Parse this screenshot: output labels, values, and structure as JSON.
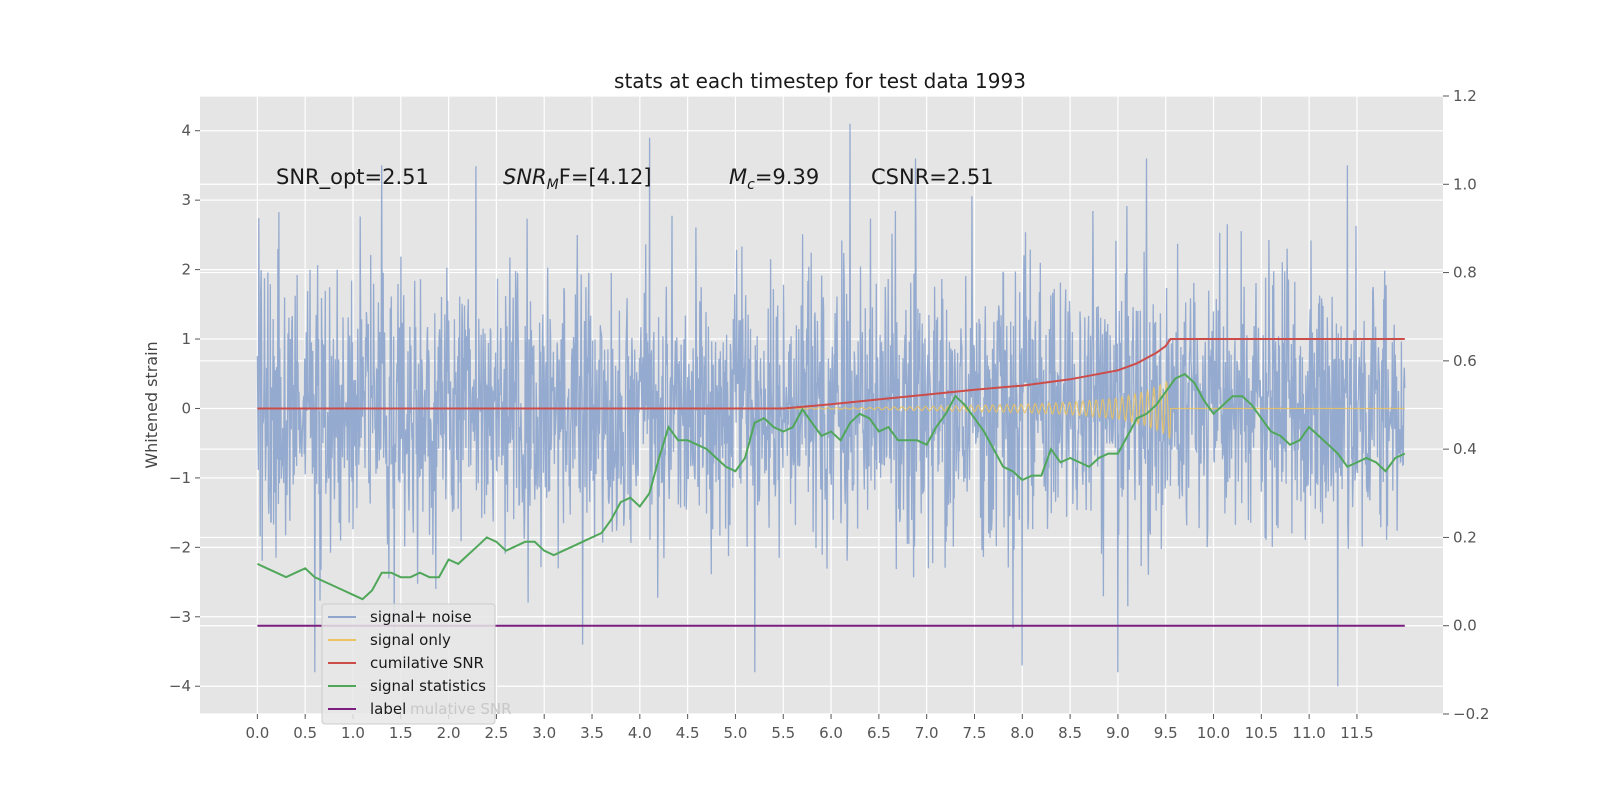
{
  "chart_data": {
    "type": "line",
    "title": "stats at each timestep for test data 1993",
    "ylabel": "Whitened strain",
    "xlim": [
      -0.6,
      12.4
    ],
    "ylim": [
      -4.4,
      4.5
    ],
    "y2lim": [
      -0.2,
      1.2
    ],
    "xticks": [
      "0.0",
      "0.5",
      "1.0",
      "1.5",
      "2.0",
      "2.5",
      "3.0",
      "3.5",
      "4.0",
      "4.5",
      "5.0",
      "5.5",
      "6.0",
      "6.5",
      "7.0",
      "7.5",
      "8.0",
      "8.5",
      "9.0",
      "9.5",
      "10.0",
      "10.5",
      "11.0",
      "11.5"
    ],
    "yticks": [
      "4",
      "3",
      "2",
      "1",
      "0",
      "−1",
      "−2",
      "−3",
      "−4"
    ],
    "y2ticks": [
      "1.2",
      "1.0",
      "0.8",
      "0.6",
      "0.4",
      "0.2",
      "0.0",
      "−0.2"
    ],
    "grid": true,
    "legend_position": "lower-left",
    "annotations": [
      {
        "id": "snr_opt",
        "text": "SNR_opt=2.51"
      },
      {
        "id": "snr_mf",
        "main": "SNR",
        "sub": "M",
        "rest": "F=[4.12]"
      },
      {
        "id": "mc",
        "main": "M",
        "sub": "c",
        "rest": "=9.39"
      },
      {
        "id": "csnr",
        "text": "CSNR=2.51"
      }
    ],
    "legend_overlap_text": "mulative SNR",
    "series": [
      {
        "name": "signal+ noise",
        "color": "#8fa7cd",
        "axis": "left",
        "note": "dense noise trace, approx. Gaussian, bulk within ±2, extremes about +4.1 / −4.0",
        "x_range": [
          0.0,
          12.0
        ],
        "highlight": [
          {
            "x": 1.3,
            "y": 3.5
          },
          {
            "x": 4.1,
            "y": 3.9
          },
          {
            "x": 6.2,
            "y": 4.1
          },
          {
            "x": 9.3,
            "y": 3.6
          },
          {
            "x": 11.4,
            "y": 3.5
          },
          {
            "x": 11.3,
            "y": -4.0
          },
          {
            "x": 9.0,
            "y": -3.8
          },
          {
            "x": 8.0,
            "y": -3.7
          },
          {
            "x": 5.2,
            "y": -3.8
          },
          {
            "x": 0.6,
            "y": -3.8
          },
          {
            "x": 3.4,
            "y": -3.4
          },
          {
            "x": 6.0,
            "y": 0.9
          },
          {
            "x": 6.0,
            "y": -1.1
          }
        ]
      },
      {
        "name": "signal only",
        "color": "#ecc35f",
        "axis": "left",
        "note": "chirp, ~0 until about 6.3, growing to ±0.45 at 9.55, then 0",
        "x": [
          0.0,
          6.2,
          7.0,
          8.0,
          8.5,
          9.0,
          9.3,
          9.5,
          9.55,
          12.0
        ],
        "envelope": [
          0.0,
          0.01,
          0.03,
          0.06,
          0.09,
          0.15,
          0.25,
          0.38,
          0.45,
          0.0
        ]
      },
      {
        "name": "cumilative SNR",
        "color": "#cc4c4a",
        "axis": "left",
        "x": [
          0.0,
          5.5,
          6.0,
          6.5,
          7.0,
          7.5,
          8.0,
          8.5,
          9.0,
          9.2,
          9.4,
          9.5,
          9.55,
          12.0
        ],
        "y": [
          0.0,
          0.0,
          0.06,
          0.13,
          0.2,
          0.27,
          0.33,
          0.42,
          0.55,
          0.65,
          0.8,
          0.9,
          1.0,
          1.0
        ]
      },
      {
        "name": "signal statistics",
        "color": "#50a75a",
        "axis": "right",
        "x": [
          0.0,
          0.1,
          0.2,
          0.3,
          0.4,
          0.5,
          0.6,
          0.7,
          0.8,
          0.9,
          1.0,
          1.1,
          1.2,
          1.3,
          1.4,
          1.5,
          1.6,
          1.7,
          1.8,
          1.9,
          2.0,
          2.1,
          2.2,
          2.3,
          2.4,
          2.5,
          2.6,
          2.7,
          2.8,
          2.9,
          3.0,
          3.1,
          3.2,
          3.3,
          3.4,
          3.5,
          3.6,
          3.7,
          3.8,
          3.9,
          4.0,
          4.1,
          4.2,
          4.3,
          4.4,
          4.5,
          4.6,
          4.7,
          4.8,
          4.9,
          5.0,
          5.1,
          5.2,
          5.3,
          5.4,
          5.5,
          5.6,
          5.7,
          5.8,
          5.9,
          6.0,
          6.1,
          6.2,
          6.3,
          6.4,
          6.5,
          6.6,
          6.7,
          6.8,
          6.9,
          7.0,
          7.1,
          7.2,
          7.3,
          7.4,
          7.5,
          7.6,
          7.7,
          7.8,
          7.9,
          8.0,
          8.1,
          8.2,
          8.3,
          8.4,
          8.5,
          8.6,
          8.7,
          8.8,
          8.9,
          9.0,
          9.1,
          9.2,
          9.3,
          9.4,
          9.5,
          9.6,
          9.7,
          9.8,
          9.9,
          10.0,
          10.1,
          10.2,
          10.3,
          10.4,
          10.5,
          10.6,
          10.7,
          10.8,
          10.9,
          11.0,
          11.1,
          11.2,
          11.3,
          11.4,
          11.5,
          11.6,
          11.7,
          11.8,
          11.9,
          12.0
        ],
        "y": [
          0.14,
          0.13,
          0.12,
          0.11,
          0.12,
          0.13,
          0.11,
          0.1,
          0.09,
          0.08,
          0.07,
          0.06,
          0.08,
          0.12,
          0.12,
          0.11,
          0.11,
          0.12,
          0.11,
          0.11,
          0.15,
          0.14,
          0.16,
          0.18,
          0.2,
          0.19,
          0.17,
          0.18,
          0.19,
          0.19,
          0.17,
          0.16,
          0.17,
          0.18,
          0.19,
          0.2,
          0.21,
          0.24,
          0.28,
          0.29,
          0.27,
          0.3,
          0.38,
          0.45,
          0.42,
          0.42,
          0.41,
          0.4,
          0.38,
          0.36,
          0.35,
          0.38,
          0.46,
          0.47,
          0.45,
          0.44,
          0.45,
          0.49,
          0.46,
          0.43,
          0.44,
          0.42,
          0.46,
          0.48,
          0.47,
          0.44,
          0.45,
          0.42,
          0.42,
          0.42,
          0.41,
          0.45,
          0.48,
          0.52,
          0.5,
          0.47,
          0.44,
          0.4,
          0.36,
          0.35,
          0.33,
          0.34,
          0.34,
          0.4,
          0.37,
          0.38,
          0.37,
          0.36,
          0.38,
          0.39,
          0.39,
          0.43,
          0.47,
          0.48,
          0.5,
          0.53,
          0.56,
          0.57,
          0.55,
          0.51,
          0.48,
          0.5,
          0.52,
          0.52,
          0.5,
          0.47,
          0.44,
          0.43,
          0.41,
          0.42,
          0.45,
          0.43,
          0.41,
          0.39,
          0.36,
          0.37,
          0.38,
          0.37,
          0.35,
          0.38,
          0.39
        ],
        "y_left_note": "plotted against right axis (0.0 to 1.2)"
      },
      {
        "name": "label",
        "color": "#7b1f80",
        "axis": "right",
        "x": [
          0.0,
          12.0
        ],
        "y": [
          0.0,
          0.0
        ]
      }
    ]
  }
}
